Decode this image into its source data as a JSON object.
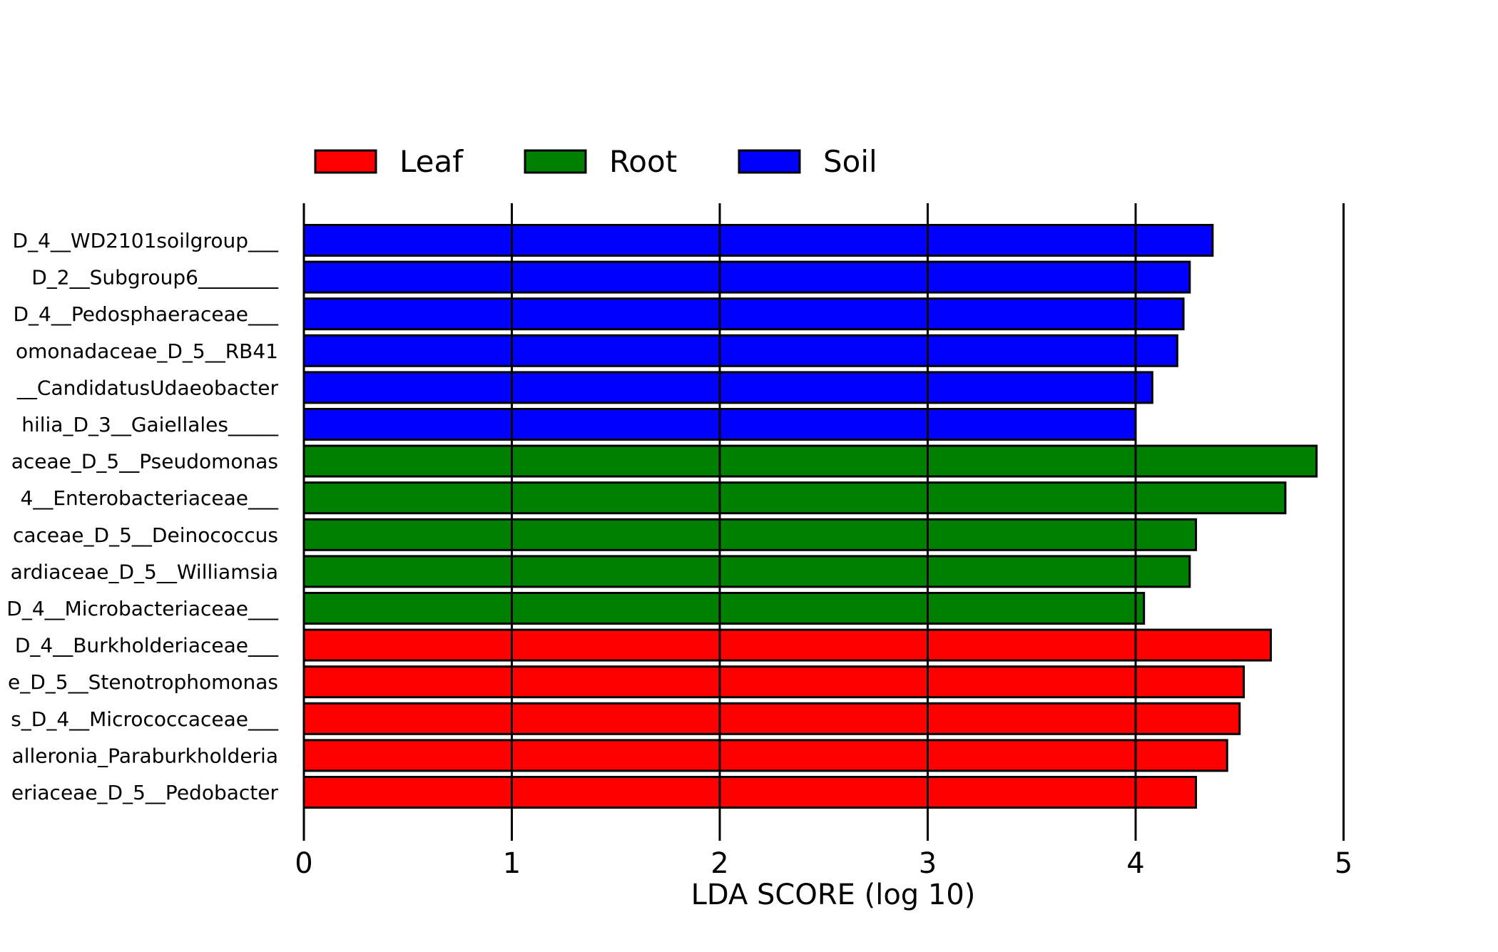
{
  "chart_data": {
    "type": "bar",
    "orientation": "horizontal",
    "xlabel": "LDA SCORE (log 10)",
    "ylabel": "",
    "title": "",
    "xlim": [
      0,
      5
    ],
    "xticks": [
      "0",
      "1",
      "2",
      "3",
      "4",
      "5"
    ],
    "grid": "vertical lines at major ticks",
    "legend_placement": "top-left",
    "legend": [
      {
        "name": "Leaf",
        "color": "#ff0000"
      },
      {
        "name": "Root",
        "color": "#008000"
      },
      {
        "name": "Soil",
        "color": "#0000ff"
      }
    ],
    "categories": [
      "D_4__WD2101soilgroup___",
      "D_2__Subgroup6________",
      "D_4__Pedosphaeraceae___",
      "omonadaceae_D_5__RB41",
      "__CandidatusUdaeobacter",
      "hilia_D_3__Gaiellales_____",
      "aceae_D_5__Pseudomonas",
      "4__Enterobacteriaceae___",
      "caceae_D_5__Deinococcus",
      "ardiaceae_D_5__Williamsia",
      "D_4__Microbacteriaceae___",
      "D_4__Burkholderiaceae___",
      "e_D_5__Stenotrophomonas",
      "s_D_4__Micrococcaceae___",
      "alleronia_Paraburkholderia",
      "eriaceae_D_5__Pedobacter"
    ],
    "values": [
      4.37,
      4.26,
      4.23,
      4.2,
      4.08,
      4.0,
      4.87,
      4.72,
      4.29,
      4.26,
      4.04,
      4.65,
      4.52,
      4.5,
      4.44,
      4.29
    ],
    "groups": [
      "Soil",
      "Soil",
      "Soil",
      "Soil",
      "Soil",
      "Soil",
      "Root",
      "Root",
      "Root",
      "Root",
      "Root",
      "Leaf",
      "Leaf",
      "Leaf",
      "Leaf",
      "Leaf"
    ]
  }
}
